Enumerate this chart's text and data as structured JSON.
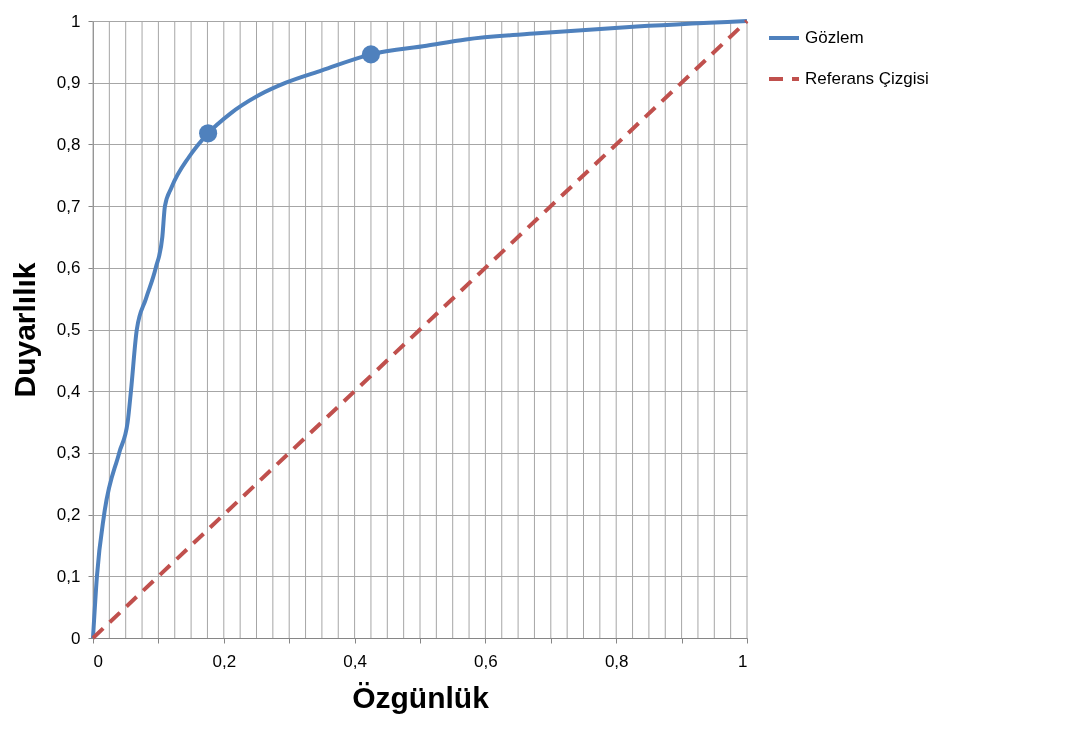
{
  "chart_data": {
    "type": "line",
    "xlabel": "Özgünlük",
    "ylabel": "Duyarlılık",
    "xlim": [
      0,
      1
    ],
    "ylim": [
      0,
      1
    ],
    "xticks": [
      0,
      {
        "value": 0.025,
        "label": null
      },
      {
        "value": 0.05,
        "label": null
      },
      {
        "value": 0.075,
        "label": null
      },
      {
        "value": 0.1,
        "label": null
      },
      {
        "value": 0.125,
        "label": null
      },
      {
        "value": 0.15,
        "label": null
      },
      {
        "value": 0.175,
        "label": null
      },
      {
        "value": 0.2,
        "label": "0,2"
      },
      {
        "value": 0.225,
        "label": null
      },
      {
        "value": 0.25,
        "label": null
      },
      {
        "value": 0.275,
        "label": null
      },
      {
        "value": 0.3,
        "label": null
      },
      {
        "value": 0.325,
        "label": null
      },
      {
        "value": 0.35,
        "label": null
      },
      {
        "value": 0.375,
        "label": null
      },
      {
        "value": 0.4,
        "label": "0,4"
      },
      {
        "value": 0.425,
        "label": null
      },
      {
        "value": 0.45,
        "label": null
      },
      {
        "value": 0.475,
        "label": null
      },
      {
        "value": 0.5,
        "label": null
      },
      {
        "value": 0.525,
        "label": null
      },
      {
        "value": 0.55,
        "label": null
      },
      {
        "value": 0.575,
        "label": null
      },
      {
        "value": 0.6,
        "label": "0,6"
      },
      {
        "value": 0.625,
        "label": null
      },
      {
        "value": 0.65,
        "label": null
      },
      {
        "value": 0.675,
        "label": null
      },
      {
        "value": 0.7,
        "label": null
      },
      {
        "value": 0.725,
        "label": null
      },
      {
        "value": 0.75,
        "label": null
      },
      {
        "value": 0.775,
        "label": null
      },
      {
        "value": 0.8,
        "label": "0,8"
      },
      {
        "value": 0.825,
        "label": null
      },
      {
        "value": 0.85,
        "label": null
      },
      {
        "value": 0.875,
        "label": null
      },
      {
        "value": 0.9,
        "label": null
      },
      {
        "value": 0.925,
        "label": null
      },
      {
        "value": 0.95,
        "label": null
      },
      {
        "value": 0.975,
        "label": null
      },
      1
    ],
    "yticks": [
      0,
      {
        "value": 0.1,
        "label": "0,1"
      },
      {
        "value": 0.2,
        "label": "0,2"
      },
      {
        "value": 0.3,
        "label": "0,3"
      },
      {
        "value": 0.4,
        "label": "0,4"
      },
      {
        "value": 0.5,
        "label": "0,5"
      },
      {
        "value": 0.6,
        "label": "0,6"
      },
      {
        "value": 0.7,
        "label": "0,7"
      },
      {
        "value": 0.8,
        "label": "0,8"
      },
      {
        "value": 0.9,
        "label": "0,9"
      },
      1
    ],
    "grid": true,
    "legend": "right",
    "series": [
      {
        "name": "Gözlem",
        "type": "line",
        "line_style": "solid",
        "color": "#4f81bd",
        "x": [
          0,
          0.006,
          0.017,
          0.04,
          0.053,
          0.058,
          0.067,
          0.081,
          0.096,
          0.106,
          0.11,
          0.12,
          0.147,
          0.176,
          0.21,
          0.254,
          0.295,
          0.35,
          0.425,
          0.51,
          0.57,
          0.68,
          0.815,
          1
        ],
        "values": [
          0,
          0.1,
          0.2,
          0.3,
          0.35,
          0.4,
          0.5,
          0.55,
          0.6,
          0.65,
          0.7,
          0.73,
          0.78,
          0.818,
          0.85,
          0.88,
          0.9,
          0.92,
          0.946,
          0.96,
          0.97,
          0.98,
          0.99,
          1
        ]
      },
      {
        "type": "scatter",
        "marker": "circle",
        "color": "#4f81bd",
        "x": [
          0.176,
          0.425
        ],
        "values": [
          0.818,
          0.946
        ]
      },
      {
        "name": "Referans Çizgisi",
        "type": "line",
        "line_style": "dashed",
        "color": "#c0504d",
        "x": [
          0,
          1
        ],
        "values": [
          0,
          1
        ]
      }
    ]
  }
}
